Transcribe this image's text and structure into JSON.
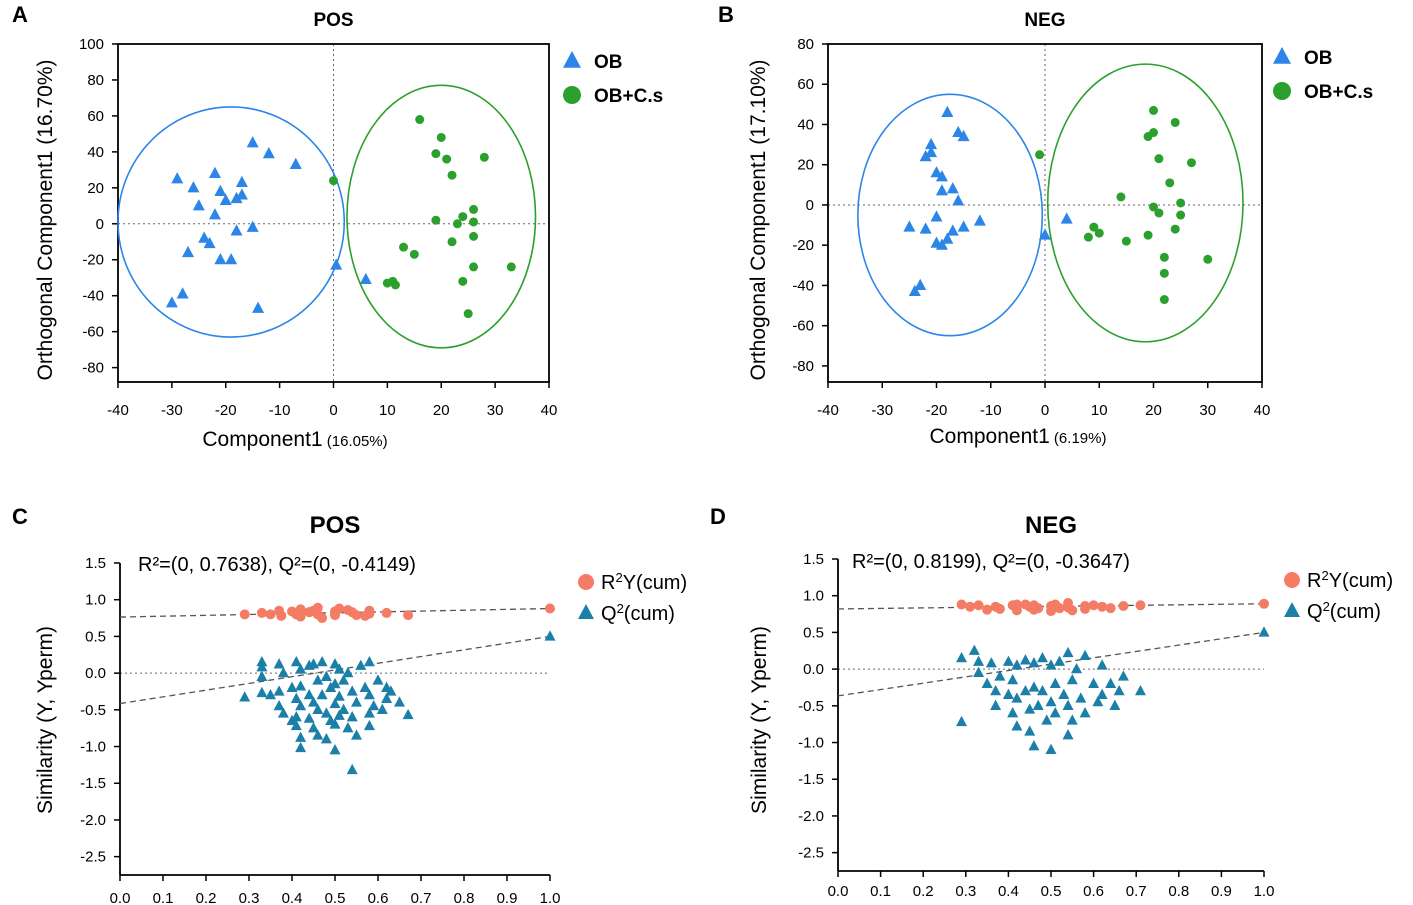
{
  "chart_data": [
    {
      "panel_letter": "A",
      "type": "scatter",
      "title": "POS",
      "xlabel": "Component1",
      "xlabel_pct": "(16.05%)",
      "ylabel": "Orthogonal Component1  (16.70%)",
      "xlim": [
        -40,
        40
      ],
      "ylim": [
        -88,
        100
      ],
      "xticks": [
        "-40",
        "-30",
        "-20",
        "-10",
        "0",
        "10",
        "20",
        "30",
        "40"
      ],
      "yticks": [
        "100",
        "80",
        "60",
        "40",
        "20",
        "0",
        "-20",
        "-40",
        "-60",
        "-80"
      ],
      "reference_lines": {
        "x": 0,
        "y": 0
      },
      "legend_position": "top-right",
      "series": [
        {
          "name": "OB",
          "marker": "triangle",
          "color": "#2b86e8",
          "ellipse": {
            "cx": -19,
            "cy": 1,
            "rx": 21,
            "ry": 64
          },
          "points": [
            [
              -29,
              25
            ],
            [
              -26,
              20
            ],
            [
              -27,
              -16
            ],
            [
              -28,
              -39
            ],
            [
              -30,
              -44
            ],
            [
              -25,
              10
            ],
            [
              -24,
              -8
            ],
            [
              -23,
              -11
            ],
            [
              -22,
              28
            ],
            [
              -22,
              5
            ],
            [
              -21,
              18
            ],
            [
              -21,
              -20
            ],
            [
              -20,
              13
            ],
            [
              -19,
              -20
            ],
            [
              -18,
              -4
            ],
            [
              -18,
              14
            ],
            [
              -17,
              16
            ],
            [
              -17,
              23
            ],
            [
              -15,
              45
            ],
            [
              -15,
              -2
            ],
            [
              -14,
              -47
            ],
            [
              -12,
              39
            ],
            [
              -7,
              33
            ],
            [
              0.5,
              -23
            ],
            [
              6,
              -31
            ]
          ]
        },
        {
          "name": "OB+C.s",
          "marker": "circle",
          "color": "#2ca02c",
          "ellipse": {
            "cx": 20,
            "cy": 4,
            "rx": 17.5,
            "ry": 73
          },
          "points": [
            [
              0,
              24
            ],
            [
              10,
              -33
            ],
            [
              11,
              -32
            ],
            [
              11.5,
              -34
            ],
            [
              13,
              -13
            ],
            [
              15,
              -17
            ],
            [
              16,
              58
            ],
            [
              19,
              2
            ],
            [
              19,
              39
            ],
            [
              20,
              48
            ],
            [
              21,
              36
            ],
            [
              22,
              27
            ],
            [
              22,
              -10
            ],
            [
              23,
              0
            ],
            [
              24,
              4
            ],
            [
              24,
              -32
            ],
            [
              25,
              -50
            ],
            [
              26,
              8
            ],
            [
              26,
              1
            ],
            [
              26,
              -7
            ],
            [
              26,
              -24
            ],
            [
              28,
              37
            ],
            [
              33,
              -24
            ]
          ]
        }
      ]
    },
    {
      "panel_letter": "B",
      "type": "scatter",
      "title": "NEG",
      "xlabel": "Component1",
      "xlabel_pct": "(6.19%)",
      "ylabel": "Orthogonal Component1  (17.10%)",
      "xlim": [
        -40,
        40
      ],
      "ylim": [
        -88,
        80
      ],
      "xticks": [
        "-40",
        "-30",
        "-20",
        "-10",
        "0",
        "10",
        "20",
        "30",
        "40"
      ],
      "yticks": [
        "80",
        "60",
        "40",
        "20",
        "0",
        "-20",
        "-40",
        "-60",
        "-80"
      ],
      "reference_lines": {
        "x": 0,
        "y": 0
      },
      "legend_position": "top-right",
      "series": [
        {
          "name": "OB",
          "marker": "triangle",
          "color": "#2b86e8",
          "ellipse": {
            "cx": -17.5,
            "cy": -5,
            "rx": 17,
            "ry": 60
          },
          "points": [
            [
              -25,
              -11
            ],
            [
              -24,
              -43
            ],
            [
              -23,
              -40
            ],
            [
              -22,
              24
            ],
            [
              -22,
              -12
            ],
            [
              -21,
              30
            ],
            [
              -21,
              26
            ],
            [
              -20,
              16
            ],
            [
              -20,
              -6
            ],
            [
              -20,
              -19
            ],
            [
              -19,
              -20
            ],
            [
              -19,
              14
            ],
            [
              -19,
              7
            ],
            [
              -18,
              -17
            ],
            [
              -18,
              46
            ],
            [
              -17,
              -13
            ],
            [
              -17,
              8
            ],
            [
              -16,
              36
            ],
            [
              -16,
              2
            ],
            [
              -15,
              34
            ],
            [
              -15,
              -11
            ],
            [
              -12,
              -8
            ],
            [
              0,
              -15
            ],
            [
              4,
              -7
            ]
          ]
        },
        {
          "name": "OB+C.s",
          "marker": "circle",
          "color": "#2ca02c",
          "ellipse": {
            "cx": 18.5,
            "cy": 1,
            "rx": 18,
            "ry": 69
          },
          "points": [
            [
              -1,
              25
            ],
            [
              8,
              -16
            ],
            [
              9,
              -11
            ],
            [
              10,
              -14
            ],
            [
              14,
              4
            ],
            [
              15,
              -18
            ],
            [
              19,
              -15
            ],
            [
              19,
              34
            ],
            [
              20,
              47
            ],
            [
              20,
              -1
            ],
            [
              20,
              36
            ],
            [
              21,
              -4
            ],
            [
              21,
              23
            ],
            [
              22,
              -47
            ],
            [
              22,
              -34
            ],
            [
              22,
              -26
            ],
            [
              23,
              11
            ],
            [
              24,
              -12
            ],
            [
              24,
              41
            ],
            [
              25,
              -5
            ],
            [
              25,
              1
            ],
            [
              27,
              21
            ],
            [
              30,
              -27
            ]
          ]
        }
      ]
    },
    {
      "panel_letter": "C",
      "type": "scatter",
      "title": "POS",
      "annotation": "R²=(0, 0.7638), Q²=(0, -0.4149)",
      "xlabel": "",
      "ylabel": "Similarity (Y, Yperm)",
      "xlim": [
        0,
        1
      ],
      "ylim": [
        -2.75,
        1.5
      ],
      "xticks": [
        "0.0",
        "0.1",
        "0.2",
        "0.3",
        "0.4",
        "0.5",
        "0.6",
        "0.7",
        "0.8",
        "0.9",
        "1.0"
      ],
      "yticks": [
        "1.5",
        "1.0",
        "0.5",
        "0.0",
        "-0.5",
        "-1.0",
        "-1.5",
        "-2.0",
        "-2.5"
      ],
      "reference_lines": {
        "y": 0
      },
      "regression_lines": [
        {
          "series": "R2Y(cum)",
          "intercept": 0.7638,
          "end": [
            1.0,
            0.88
          ]
        },
        {
          "series": "Q2(cum)",
          "intercept": -0.4149,
          "end": [
            1.0,
            0.5
          ]
        }
      ],
      "legend_position": "top-right",
      "series": [
        {
          "name": "R2Y(cum)",
          "legend_main": "R",
          "legend_sup": "2",
          "legend_rest": "Y(cum)",
          "marker": "circle",
          "color": "#f47c64",
          "x": [
            0.29,
            0.33,
            0.37,
            0.375,
            0.4,
            0.41,
            0.42,
            0.42,
            0.45,
            0.46,
            0.46,
            0.47,
            0.5,
            0.5,
            0.51,
            0.54,
            0.55,
            0.58,
            0.58,
            0.62,
            0.67,
            1.0,
            0.35,
            0.44,
            0.53,
            0.57
          ],
          "y": [
            0.8,
            0.82,
            0.85,
            0.78,
            0.84,
            0.8,
            0.87,
            0.77,
            0.85,
            0.8,
            0.89,
            0.75,
            0.84,
            0.79,
            0.88,
            0.83,
            0.79,
            0.81,
            0.85,
            0.82,
            0.79,
            0.88,
            0.8,
            0.83,
            0.86,
            0.78
          ]
        },
        {
          "name": "Q2(cum)",
          "legend_main": "Q",
          "legend_sup": "2",
          "legend_rest": "(cum)",
          "marker": "triangle",
          "color": "#1b7fa8",
          "x": [
            0.29,
            0.33,
            0.33,
            0.33,
            0.33,
            0.35,
            0.37,
            0.37,
            0.37,
            0.38,
            0.38,
            0.4,
            0.4,
            0.41,
            0.41,
            0.41,
            0.41,
            0.42,
            0.42,
            0.42,
            0.42,
            0.42,
            0.44,
            0.44,
            0.44,
            0.45,
            0.45,
            0.45,
            0.46,
            0.46,
            0.46,
            0.47,
            0.47,
            0.48,
            0.48,
            0.48,
            0.49,
            0.49,
            0.5,
            0.5,
            0.5,
            0.5,
            0.5,
            0.51,
            0.51,
            0.51,
            0.52,
            0.52,
            0.53,
            0.53,
            0.54,
            0.54,
            0.54,
            0.55,
            0.55,
            0.56,
            0.57,
            0.58,
            0.58,
            0.58,
            0.58,
            0.59,
            0.6,
            0.61,
            0.62,
            0.62,
            0.63,
            0.65,
            0.67,
            1.0
          ],
          "y": [
            -0.33,
            -0.27,
            0.15,
            -0.05,
            0.08,
            -0.3,
            0.12,
            -0.25,
            -0.45,
            0.0,
            -0.55,
            -0.2,
            -0.65,
            0.15,
            -0.35,
            -0.6,
            -0.72,
            0.05,
            -0.45,
            -0.88,
            -1.02,
            -0.18,
            0.1,
            -0.3,
            -0.62,
            0.12,
            -0.4,
            -0.75,
            -0.1,
            -0.5,
            -0.85,
            0.15,
            -0.3,
            -0.05,
            -0.55,
            -0.9,
            -0.2,
            -0.65,
            0.12,
            -0.15,
            -0.42,
            -0.7,
            -1.05,
            0.05,
            -0.32,
            -0.58,
            -0.1,
            -0.5,
            0.0,
            -0.75,
            -0.25,
            -0.6,
            -1.32,
            -0.4,
            -0.85,
            0.1,
            -0.2,
            0.15,
            -0.3,
            -0.55,
            -0.72,
            -0.45,
            -0.1,
            -0.5,
            -0.2,
            -0.35,
            -0.25,
            -0.4,
            -0.57,
            0.5
          ]
        }
      ]
    },
    {
      "panel_letter": "D",
      "type": "scatter",
      "title": "NEG",
      "annotation": "R²=(0, 0.8199), Q²=(0, -0.3647)",
      "xlabel": "",
      "ylabel": "Similarity (Y, Yperm)",
      "xlim": [
        0,
        1
      ],
      "ylim": [
        -2.75,
        1.5
      ],
      "xticks": [
        "0.0",
        "0.1",
        "0.2",
        "0.3",
        "0.4",
        "0.5",
        "0.6",
        "0.7",
        "0.8",
        "0.9",
        "1.0"
      ],
      "yticks": [
        "1.5",
        "1.0",
        "0.5",
        "0.0",
        "-0.5",
        "-1.0",
        "-1.5",
        "-2.0",
        "-2.5"
      ],
      "reference_lines": {
        "y": 0
      },
      "regression_lines": [
        {
          "series": "R2Y(cum)",
          "intercept": 0.8199,
          "end": [
            1.0,
            0.89
          ]
        },
        {
          "series": "Q2(cum)",
          "intercept": -0.3647,
          "end": [
            1.0,
            0.5
          ]
        }
      ],
      "legend_position": "top-right",
      "series": [
        {
          "name": "R2Y(cum)",
          "legend_main": "R",
          "legend_sup": "2",
          "legend_rest": "Y(cum)",
          "marker": "circle",
          "color": "#f47c64",
          "x": [
            0.29,
            0.31,
            0.33,
            0.37,
            0.38,
            0.41,
            0.42,
            0.42,
            0.45,
            0.46,
            0.46,
            0.47,
            0.5,
            0.5,
            0.51,
            0.54,
            0.54,
            0.55,
            0.58,
            0.58,
            0.6,
            0.62,
            0.64,
            0.67,
            0.71,
            1.0,
            0.35,
            0.44,
            0.52
          ],
          "y": [
            0.88,
            0.85,
            0.87,
            0.85,
            0.82,
            0.87,
            0.8,
            0.88,
            0.85,
            0.81,
            0.87,
            0.83,
            0.86,
            0.79,
            0.88,
            0.84,
            0.9,
            0.8,
            0.86,
            0.82,
            0.87,
            0.85,
            0.83,
            0.86,
            0.87,
            0.89,
            0.81,
            0.88,
            0.83
          ]
        },
        {
          "name": "Q2(cum)",
          "legend_main": "Q",
          "legend_sup": "2",
          "legend_rest": "(cum)",
          "marker": "triangle",
          "color": "#1b7fa8",
          "x": [
            0.29,
            0.29,
            0.32,
            0.33,
            0.33,
            0.35,
            0.36,
            0.37,
            0.37,
            0.38,
            0.4,
            0.4,
            0.41,
            0.41,
            0.42,
            0.42,
            0.42,
            0.44,
            0.44,
            0.45,
            0.45,
            0.46,
            0.46,
            0.46,
            0.47,
            0.48,
            0.48,
            0.49,
            0.5,
            0.5,
            0.5,
            0.51,
            0.51,
            0.52,
            0.53,
            0.54,
            0.54,
            0.54,
            0.55,
            0.55,
            0.56,
            0.57,
            0.58,
            0.58,
            0.6,
            0.61,
            0.62,
            0.62,
            0.64,
            0.65,
            0.66,
            0.67,
            0.71,
            1.0
          ],
          "y": [
            -0.72,
            0.15,
            0.25,
            -0.05,
            0.1,
            -0.2,
            0.08,
            -0.3,
            -0.5,
            -0.1,
            0.1,
            -0.35,
            -0.15,
            -0.6,
            0.05,
            -0.4,
            -0.78,
            0.12,
            -0.3,
            -0.55,
            -0.85,
            0.08,
            -0.25,
            -1.05,
            -0.5,
            0.15,
            -0.3,
            -0.7,
            0.05,
            -0.45,
            -1.1,
            -0.2,
            -0.6,
            0.1,
            -0.35,
            0.22,
            -0.5,
            -0.9,
            -0.15,
            -0.7,
            0.0,
            -0.4,
            0.18,
            -0.6,
            -0.2,
            -0.45,
            0.05,
            -0.35,
            -0.2,
            -0.5,
            -0.3,
            -0.1,
            -0.3,
            0.5
          ]
        }
      ]
    }
  ]
}
